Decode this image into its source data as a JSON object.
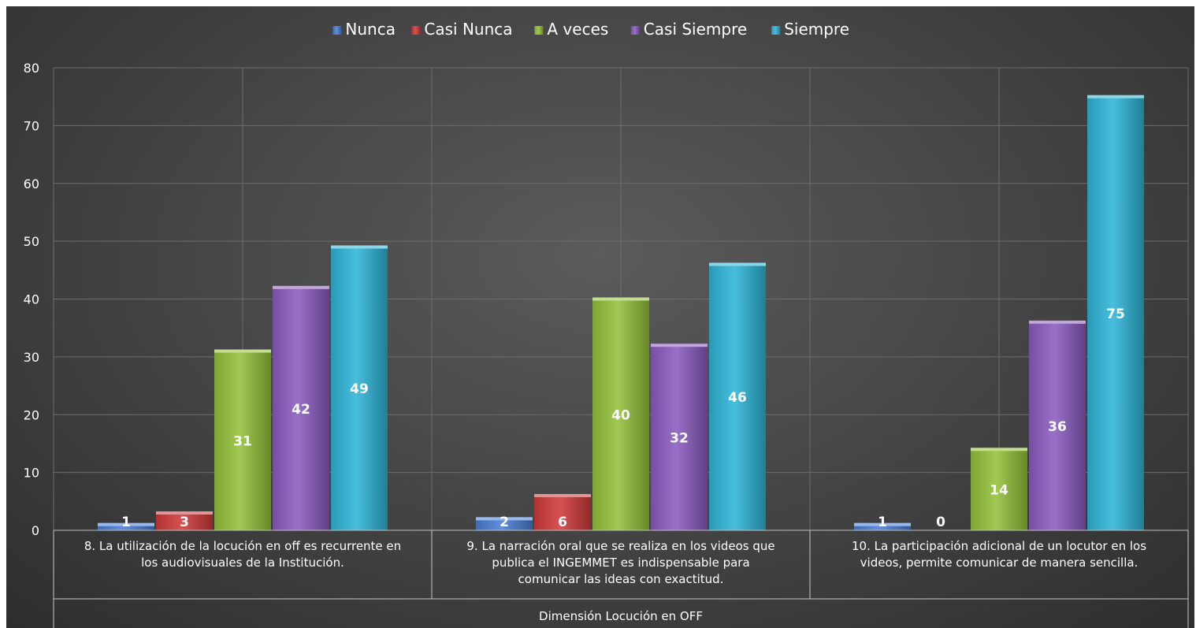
{
  "chart_data": {
    "type": "bar",
    "categories": [
      [
        "8. La utilización de la locución en off es recurrente en",
        "los audiovisuales de la Institución."
      ],
      [
        "9. La narración oral que se realiza en los videos que",
        "publica el INGEMMET es indispensable para",
        "comunicar las ideas con exactitud."
      ],
      [
        "10. La participación adicional de un locutor en los",
        "videos, permite comunicar de manera sencilla."
      ]
    ],
    "series": [
      {
        "name": "Nunca",
        "values": [
          1,
          2,
          1
        ],
        "color": "#4a7fd6"
      },
      {
        "name": "Casi Nunca",
        "values": [
          3,
          6,
          0
        ],
        "color": "#d03a3a"
      },
      {
        "name": "A veces",
        "values": [
          31,
          40,
          14
        ],
        "color": "#94c23a"
      },
      {
        "name": "Casi Siempre",
        "values": [
          42,
          32,
          36
        ],
        "color": "#8b5cc0"
      },
      {
        "name": "Siempre",
        "values": [
          49,
          46,
          75
        ],
        "color": "#2fb5d8"
      }
    ],
    "xlabel": "Dimensión Locución en OFF",
    "ylabel": "",
    "ylim": [
      0,
      80
    ],
    "yticks": [
      0,
      10,
      20,
      30,
      40,
      50,
      60,
      70,
      80
    ],
    "grid": true,
    "legend_position": "top"
  }
}
